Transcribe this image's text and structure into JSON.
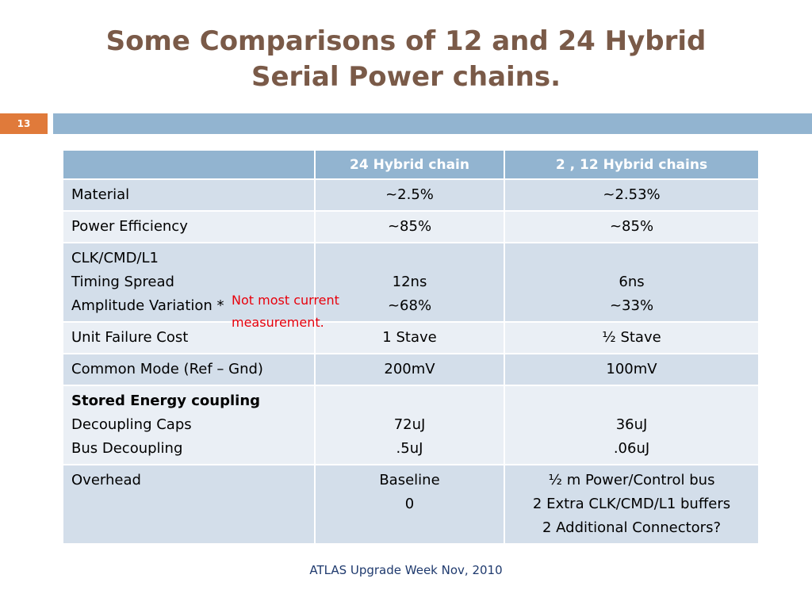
{
  "slide": {
    "title_line1": "Some Comparisons of 12 and 24 Hybrid",
    "title_line2": "Serial Power chains.",
    "number": "13",
    "footer": "ATLAS  Upgrade Week  Nov, 2010"
  },
  "table": {
    "headers": [
      "",
      "24 Hybrid chain",
      "2 , 12 Hybrid chains"
    ],
    "rows": [
      {
        "label": [
          "Material"
        ],
        "col1": [
          "~2.5%"
        ],
        "col2": [
          "~2.53%"
        ]
      },
      {
        "label": [
          "Power Efficiency"
        ],
        "col1": [
          "~85%"
        ],
        "col2": [
          "~85%"
        ]
      },
      {
        "label": [
          "CLK/CMD/L1",
          "Timing Spread",
          "Amplitude Variation *"
        ],
        "col1": [
          "",
          "12ns",
          "~68%"
        ],
        "col2": [
          "",
          "6ns",
          "~33%"
        ]
      },
      {
        "label": [
          "Unit Failure  Cost"
        ],
        "col1": [
          "1 Stave"
        ],
        "col2": [
          "½ Stave"
        ]
      },
      {
        "label": [
          "Common Mode (Ref – Gnd)"
        ],
        "col1": [
          "200mV"
        ],
        "col2": [
          "100mV"
        ]
      },
      {
        "label": [
          "Stored Energy coupling",
          "Decoupling Caps",
          "Bus Decoupling"
        ],
        "col1": [
          "",
          "72uJ",
          ".5uJ"
        ],
        "col2": [
          "",
          "36uJ",
          ".06uJ"
        ]
      },
      {
        "label": [
          "Overhead"
        ],
        "col1": [
          "Baseline",
          "0"
        ],
        "col2": [
          "½ m Power/Control bus",
          "2 Extra CLK/CMD/L1 buffers",
          "2 Additional Connectors?"
        ]
      }
    ]
  },
  "annotation": {
    "line1": "Not most current",
    "line2": "measurement."
  }
}
